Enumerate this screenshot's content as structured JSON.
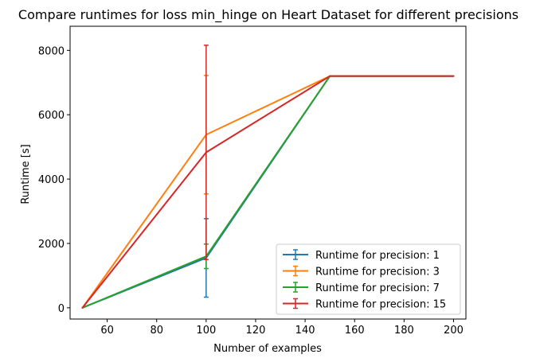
{
  "chart_data": {
    "type": "line",
    "title": "Compare runtimes for loss min_hinge on Heart Dataset for different precisions",
    "xlabel": "Number of examples",
    "ylabel": "Runtime [s]",
    "xlim": [
      45,
      205
    ],
    "ylim": [
      -350,
      8750
    ],
    "xticks": [
      60,
      80,
      100,
      120,
      140,
      160,
      180,
      200
    ],
    "yticks": [
      0,
      2000,
      4000,
      6000,
      8000
    ],
    "grid": false,
    "legend_position": "lower-right",
    "series": [
      {
        "name": "Runtime for precision: 1",
        "color": "#1f77b4",
        "x": [
          50,
          100,
          150,
          200
        ],
        "y": [
          0,
          1550,
          7200,
          7200
        ],
        "err": [
          0,
          1220,
          0,
          0
        ]
      },
      {
        "name": "Runtime for precision: 3",
        "color": "#ff7f0e",
        "x": [
          50,
          100,
          150,
          200
        ],
        "y": [
          0,
          5380,
          7200,
          7200
        ],
        "err": [
          0,
          1840,
          0,
          0
        ]
      },
      {
        "name": "Runtime for precision: 7",
        "color": "#2ca02c",
        "x": [
          50,
          100,
          150,
          200
        ],
        "y": [
          0,
          1600,
          7200,
          7200
        ],
        "err": [
          0,
          380,
          0,
          0
        ]
      },
      {
        "name": "Runtime for precision: 15",
        "color": "#d62728",
        "x": [
          50,
          100,
          150,
          200
        ],
        "y": [
          0,
          4830,
          7200,
          7200
        ],
        "err": [
          0,
          3330,
          0,
          0
        ]
      }
    ]
  }
}
